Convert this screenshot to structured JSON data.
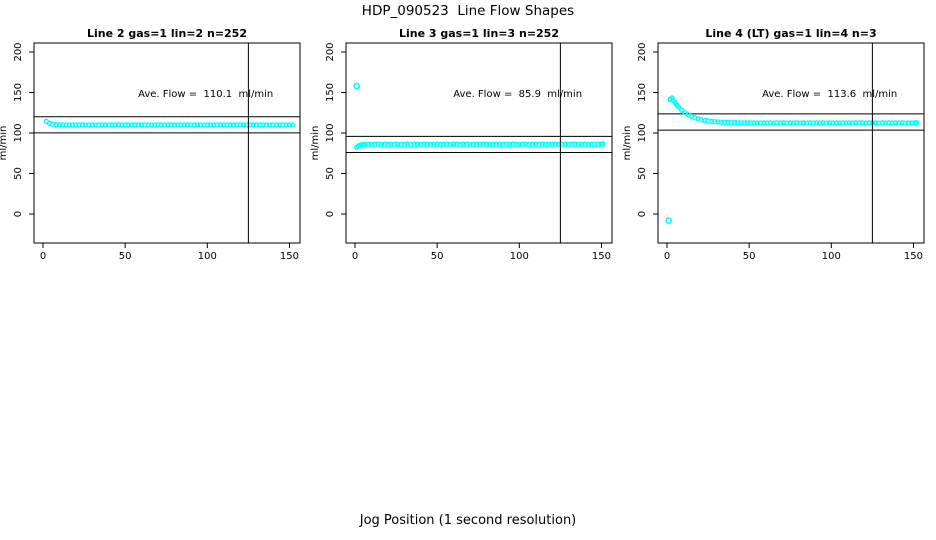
{
  "figure": {
    "title": "HDP_090523  Line Flow Shapes",
    "xlabel": "Jog Position (1 second resolution)",
    "background_color": "#FFFFFF",
    "point_color": "#00FFFF",
    "line_color": "#000000"
  },
  "chart_data": [
    {
      "type": "scatter",
      "title": "Line 2 gas=1 lin=2 n=252",
      "line": "Line 2",
      "gas": 1,
      "lin": 2,
      "n": 252,
      "ylabel": "ml/min",
      "annotation": "Ave. Flow =  110.1  ml/min",
      "annotation_xy": [
        99,
        148
      ],
      "ave_flow": 110.1,
      "ref_lines_y": [
        120.1,
        100.1
      ],
      "vline_x": 125,
      "x_ticks": [
        0,
        50,
        100,
        150
      ],
      "y_ticks": [
        0,
        50,
        100,
        150,
        200
      ],
      "xlim": [
        -6,
        157
      ],
      "ylim": [
        -36,
        211
      ],
      "grid": false,
      "outliers": [],
      "points": [
        [
          2,
          114.5
        ],
        [
          4,
          111.8
        ],
        [
          6,
          110.7
        ],
        [
          8,
          110.3
        ],
        [
          10,
          110.1
        ],
        [
          12,
          110.0
        ],
        [
          14,
          109.9
        ],
        [
          16,
          110.1
        ],
        [
          18,
          110.0
        ],
        [
          20,
          109.9
        ],
        [
          22,
          110.0
        ],
        [
          24,
          110.1
        ],
        [
          26,
          109.9
        ],
        [
          28,
          110.0
        ],
        [
          30,
          110.1
        ],
        [
          32,
          109.9
        ],
        [
          34,
          110.0
        ],
        [
          36,
          110.1
        ],
        [
          38,
          109.9
        ],
        [
          40,
          110.0
        ],
        [
          42,
          110.0
        ],
        [
          44,
          109.9
        ],
        [
          46,
          110.1
        ],
        [
          48,
          110.0
        ],
        [
          50,
          109.9
        ],
        [
          52,
          110.0
        ],
        [
          54,
          110.1
        ],
        [
          56,
          109.9
        ],
        [
          58,
          110.0
        ],
        [
          60,
          110.1
        ],
        [
          62,
          109.9
        ],
        [
          64,
          110.0
        ],
        [
          66,
          110.0
        ],
        [
          68,
          109.9
        ],
        [
          70,
          110.1
        ],
        [
          72,
          110.0
        ],
        [
          74,
          109.9
        ],
        [
          76,
          110.0
        ],
        [
          78,
          110.1
        ],
        [
          80,
          109.9
        ],
        [
          82,
          110.0
        ],
        [
          84,
          110.1
        ],
        [
          86,
          109.9
        ],
        [
          88,
          110.0
        ],
        [
          90,
          110.0
        ],
        [
          92,
          109.9
        ],
        [
          94,
          110.1
        ],
        [
          96,
          110.0
        ],
        [
          98,
          109.9
        ],
        [
          100,
          110.0
        ],
        [
          102,
          110.1
        ],
        [
          104,
          109.9
        ],
        [
          106,
          110.0
        ],
        [
          108,
          110.1
        ],
        [
          110,
          109.9
        ],
        [
          112,
          110.0
        ],
        [
          114,
          110.0
        ],
        [
          116,
          109.9
        ],
        [
          118,
          110.1
        ],
        [
          120,
          110.0
        ],
        [
          122,
          109.9
        ],
        [
          124,
          110.0
        ],
        [
          126,
          110.1
        ],
        [
          128,
          109.9
        ],
        [
          130,
          110.0
        ],
        [
          132,
          110.1
        ],
        [
          134,
          109.9
        ],
        [
          136,
          110.0
        ],
        [
          138,
          110.0
        ],
        [
          140,
          109.9
        ],
        [
          142,
          110.1
        ],
        [
          144,
          110.0
        ],
        [
          146,
          109.9
        ],
        [
          148,
          110.0
        ],
        [
          150,
          110.1
        ],
        [
          152,
          109.9
        ]
      ]
    },
    {
      "type": "scatter",
      "title": "Line 3 gas=1 lin=3 n=252",
      "line": "Line 3",
      "gas": 1,
      "lin": 3,
      "n": 252,
      "ylabel": "ml/min",
      "annotation": "Ave. Flow =  85.9  ml/min",
      "annotation_xy": [
        99,
        148
      ],
      "ave_flow": 85.9,
      "ref_lines_y": [
        95.9,
        75.9
      ],
      "vline_x": 125,
      "x_ticks": [
        0,
        50,
        100,
        150
      ],
      "y_ticks": [
        0,
        50,
        100,
        150,
        200
      ],
      "xlim": [
        -6,
        157
      ],
      "ylim": [
        -36,
        211
      ],
      "grid": false,
      "outliers": [
        [
          1,
          158
        ]
      ],
      "points": [
        [
          1,
          82.5
        ],
        [
          2,
          83.8
        ],
        [
          3,
          84.8
        ],
        [
          4,
          85.4
        ],
        [
          5,
          85.7
        ],
        [
          6,
          85.8
        ],
        [
          8,
          86.0
        ],
        [
          10,
          85.9
        ],
        [
          12,
          86.0
        ],
        [
          14,
          86.1
        ],
        [
          16,
          85.9
        ],
        [
          18,
          86.0
        ],
        [
          20,
          86.0
        ],
        [
          22,
          85.9
        ],
        [
          24,
          86.1
        ],
        [
          26,
          86.0
        ],
        [
          28,
          85.9
        ],
        [
          30,
          86.0
        ],
        [
          32,
          86.1
        ],
        [
          34,
          85.9
        ],
        [
          36,
          86.0
        ],
        [
          38,
          86.0
        ],
        [
          40,
          85.9
        ],
        [
          42,
          86.1
        ],
        [
          44,
          86.0
        ],
        [
          46,
          85.9
        ],
        [
          48,
          86.0
        ],
        [
          50,
          86.1
        ],
        [
          52,
          85.9
        ],
        [
          54,
          86.0
        ],
        [
          56,
          86.0
        ],
        [
          58,
          85.9
        ],
        [
          60,
          86.1
        ],
        [
          62,
          86.0
        ],
        [
          64,
          85.9
        ],
        [
          66,
          86.0
        ],
        [
          68,
          86.1
        ],
        [
          70,
          85.9
        ],
        [
          72,
          86.0
        ],
        [
          74,
          86.0
        ],
        [
          76,
          85.9
        ],
        [
          78,
          86.1
        ],
        [
          80,
          86.0
        ],
        [
          82,
          85.9
        ],
        [
          84,
          86.0
        ],
        [
          86,
          86.1
        ],
        [
          88,
          85.9
        ],
        [
          90,
          86.0
        ],
        [
          92,
          86.0
        ],
        [
          94,
          85.9
        ],
        [
          96,
          86.1
        ],
        [
          98,
          86.0
        ],
        [
          100,
          85.9
        ],
        [
          102,
          86.0
        ],
        [
          104,
          86.1
        ],
        [
          106,
          85.9
        ],
        [
          108,
          86.0
        ],
        [
          110,
          86.0
        ],
        [
          112,
          85.9
        ],
        [
          114,
          86.1
        ],
        [
          116,
          86.0
        ],
        [
          118,
          85.9
        ],
        [
          120,
          86.0
        ],
        [
          122,
          86.1
        ],
        [
          124,
          85.9
        ],
        [
          126,
          86.0
        ],
        [
          128,
          86.0
        ],
        [
          130,
          85.9
        ],
        [
          132,
          86.1
        ],
        [
          134,
          86.0
        ],
        [
          136,
          85.9
        ],
        [
          138,
          86.0
        ],
        [
          140,
          86.1
        ],
        [
          142,
          85.9
        ],
        [
          144,
          86.0
        ],
        [
          146,
          86.0
        ],
        [
          148,
          85.9
        ],
        [
          150,
          86.1
        ],
        [
          151,
          86.5
        ]
      ]
    },
    {
      "type": "scatter",
      "title": "Line 4 (LT) gas=1 lin=4 n=3",
      "line": "Line 4 (LT)",
      "gas": 1,
      "lin": 4,
      "n": 3,
      "ylabel": "ml/min",
      "annotation": "Ave. Flow =  113.6  ml/min",
      "annotation_xy": [
        99,
        148
      ],
      "ave_flow": 113.6,
      "ref_lines_y": [
        123.6,
        103.6
      ],
      "vline_x": 125,
      "x_ticks": [
        0,
        50,
        100,
        150
      ],
      "y_ticks": [
        0,
        50,
        100,
        150,
        200
      ],
      "xlim": [
        -6,
        157
      ],
      "ylim": [
        -36,
        211
      ],
      "grid": false,
      "outliers": [
        [
          1,
          -8
        ]
      ],
      "points": [
        [
          2,
          141.5
        ],
        [
          3,
          143.3
        ],
        [
          4,
          140.2
        ],
        [
          5,
          137.3
        ],
        [
          6,
          134.5
        ],
        [
          7,
          132.2
        ],
        [
          9,
          128.2
        ],
        [
          11,
          125.0
        ],
        [
          13,
          122.5
        ],
        [
          15,
          120.5
        ],
        [
          17,
          118.9
        ],
        [
          19,
          117.5
        ],
        [
          21,
          116.5
        ],
        [
          23,
          115.7
        ],
        [
          25,
          115.0
        ],
        [
          27,
          114.4
        ],
        [
          29,
          114.0
        ],
        [
          31,
          113.6
        ],
        [
          33,
          113.4
        ],
        [
          35,
          113.2
        ],
        [
          37,
          113.0
        ],
        [
          39,
          112.9
        ],
        [
          41,
          112.8
        ],
        [
          43,
          112.7
        ],
        [
          45,
          112.6
        ],
        [
          47,
          112.6
        ],
        [
          49,
          112.5
        ],
        [
          51,
          112.5
        ],
        [
          53,
          112.4
        ],
        [
          55,
          112.6
        ],
        [
          57,
          112.3
        ],
        [
          59,
          112.5
        ],
        [
          61,
          112.4
        ],
        [
          63,
          112.6
        ],
        [
          65,
          112.3
        ],
        [
          67,
          112.5
        ],
        [
          69,
          112.4
        ],
        [
          71,
          112.6
        ],
        [
          73,
          112.3
        ],
        [
          75,
          112.5
        ],
        [
          77,
          112.4
        ],
        [
          79,
          112.6
        ],
        [
          81,
          112.3
        ],
        [
          83,
          112.5
        ],
        [
          85,
          112.4
        ],
        [
          87,
          112.6
        ],
        [
          89,
          112.3
        ],
        [
          91,
          112.5
        ],
        [
          93,
          112.4
        ],
        [
          95,
          112.6
        ],
        [
          97,
          112.3
        ],
        [
          99,
          112.5
        ],
        [
          101,
          112.4
        ],
        [
          103,
          112.6
        ],
        [
          105,
          112.3
        ],
        [
          107,
          112.5
        ],
        [
          109,
          112.4
        ],
        [
          111,
          112.6
        ],
        [
          113,
          112.3
        ],
        [
          115,
          112.5
        ],
        [
          117,
          112.4
        ],
        [
          119,
          112.6
        ],
        [
          121,
          112.3
        ],
        [
          123,
          112.5
        ],
        [
          125,
          112.4
        ],
        [
          127,
          112.6
        ],
        [
          129,
          112.3
        ],
        [
          131,
          112.5
        ],
        [
          133,
          112.4
        ],
        [
          135,
          112.6
        ],
        [
          137,
          112.3
        ],
        [
          139,
          112.5
        ],
        [
          141,
          112.4
        ],
        [
          143,
          112.6
        ],
        [
          145,
          112.3
        ],
        [
          147,
          112.5
        ],
        [
          149,
          112.4
        ],
        [
          151,
          112.5
        ],
        [
          152,
          112.6
        ]
      ]
    }
  ]
}
